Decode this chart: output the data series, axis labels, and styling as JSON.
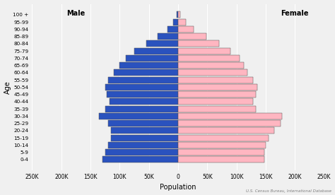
{
  "age_groups": [
    "0-4",
    "5-9",
    "10-14",
    "15-19",
    "20-24",
    "25-29",
    "30-34",
    "35-39",
    "40-44",
    "45-49",
    "50-54",
    "55-59",
    "60-64",
    "65-69",
    "70-74",
    "75-79",
    "80-84",
    "85-89",
    "90-94",
    "95-99",
    "100 +"
  ],
  "male": [
    130000,
    125000,
    120000,
    115000,
    115000,
    120000,
    135000,
    125000,
    118000,
    122000,
    125000,
    120000,
    110000,
    100000,
    90000,
    75000,
    55000,
    35000,
    18000,
    8000,
    2000
  ],
  "female": [
    148000,
    148000,
    150000,
    155000,
    165000,
    175000,
    178000,
    133000,
    128000,
    133000,
    135000,
    128000,
    118000,
    112000,
    105000,
    90000,
    70000,
    48000,
    27000,
    13000,
    4000
  ],
  "male_color": "#2a52be",
  "female_color": "#ffb6c1",
  "bar_edge_color": "#555555",
  "xlabel": "Population",
  "ylabel": "Age",
  "xlim": 250000,
  "xtick_vals": [
    -250000,
    -200000,
    -150000,
    -100000,
    -50000,
    0,
    50000,
    100000,
    150000,
    200000,
    250000
  ],
  "xtick_labels": [
    "250K",
    "200K",
    "150K",
    "100K",
    "50K",
    "0",
    "50K",
    "100K",
    "150K",
    "200K",
    "250K"
  ],
  "male_label": "Male",
  "female_label": "Female",
  "source_text": "U.S. Census Bureau, International Database",
  "bg_color": "#f0f0f0",
  "grid_color": "#ffffff"
}
